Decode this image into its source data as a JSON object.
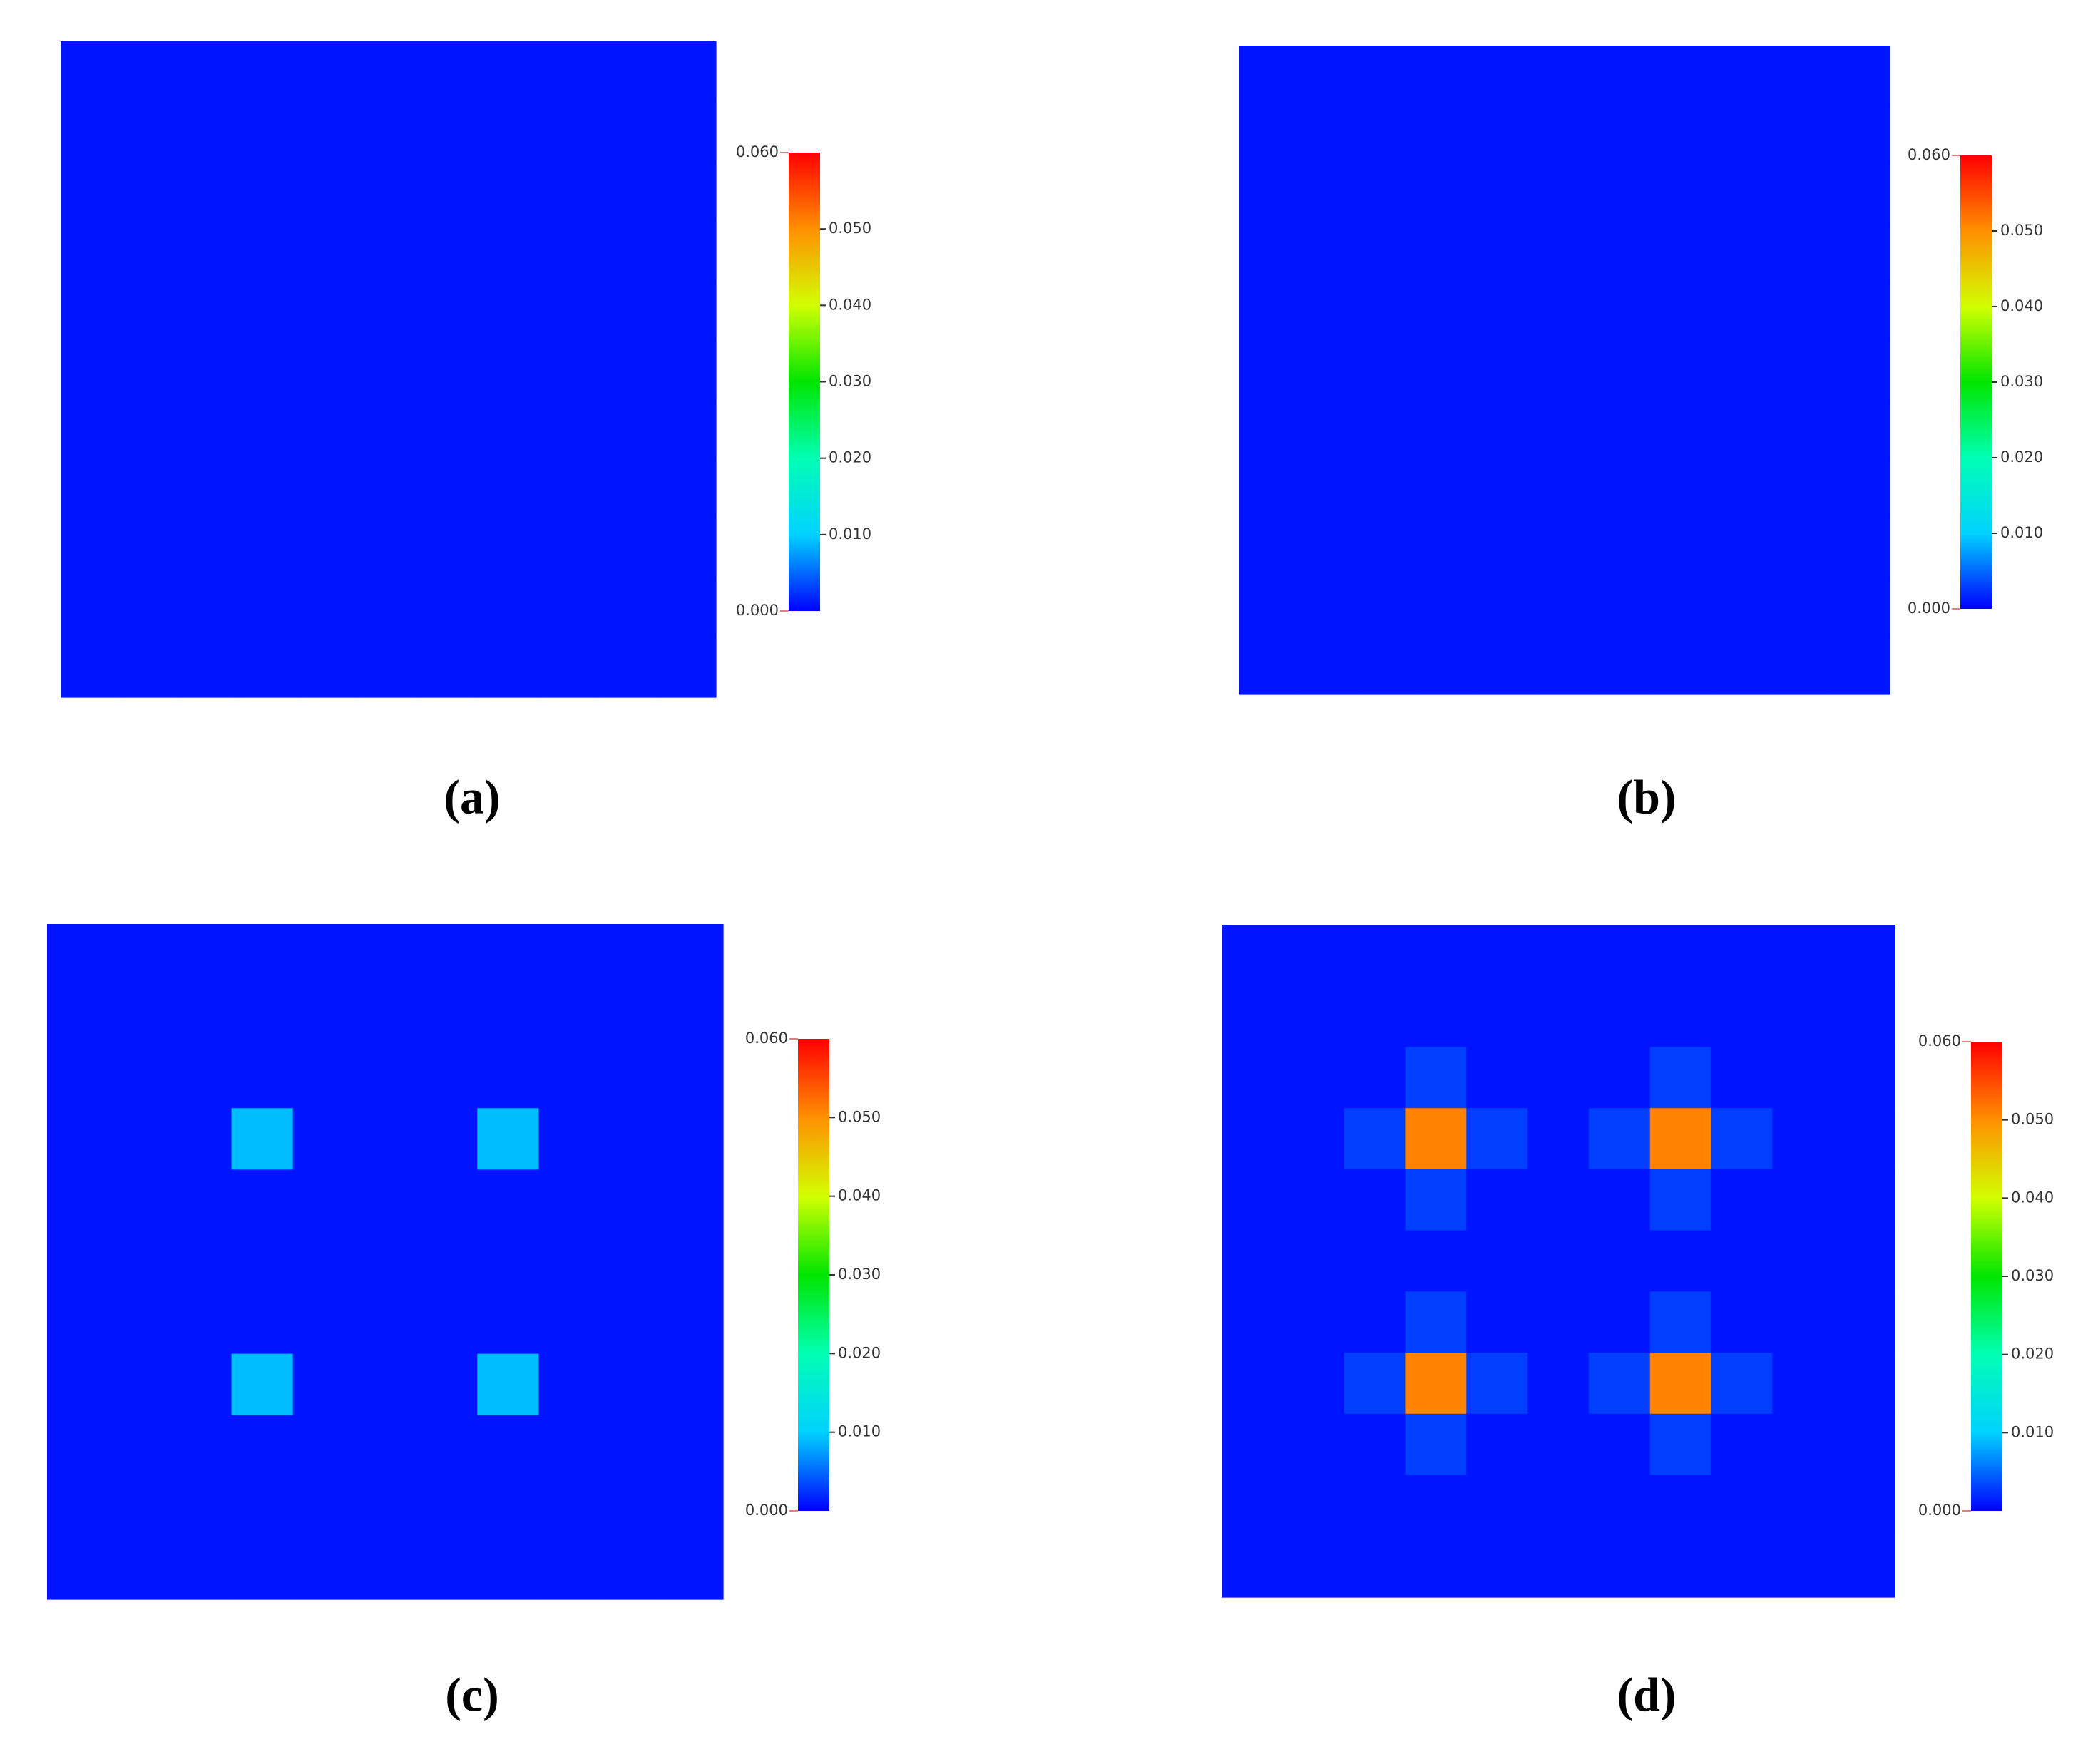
{
  "chart_data": [
    {
      "type": "heatmap",
      "label": "(a)",
      "zlim": [
        0,
        0.06
      ],
      "zticks": [
        {
          "value": 0,
          "label": "0.000"
        },
        {
          "value": 0.01,
          "label": "0.010"
        },
        {
          "value": 0.02,
          "label": "0.020"
        },
        {
          "value": 0.03,
          "label": "0.030"
        },
        {
          "value": 0.04,
          "label": "0.040"
        },
        {
          "value": 0.05,
          "label": "0.050"
        },
        {
          "value": 0.06,
          "label": "0.060"
        }
      ],
      "colormap": [
        "#0000ff",
        "#00d2ff",
        "#00ffb4",
        "#00e600",
        "#d2ff00",
        "#ff9000",
        "#ff0000"
      ],
      "z": [
        [
          0.001,
          0.001,
          0.001,
          0.001,
          0.001,
          0.001,
          0.001,
          0.001,
          0.001,
          0.001,
          0.001
        ],
        [
          0.001,
          0.001,
          0.001,
          0.001,
          0.001,
          0.001,
          0.001,
          0.001,
          0.001,
          0.001,
          0.001
        ],
        [
          0.001,
          0.001,
          0.001,
          0.001,
          0.001,
          0.001,
          0.001,
          0.001,
          0.001,
          0.001,
          0.001
        ],
        [
          0.001,
          0.001,
          0.001,
          0.001,
          0.001,
          0.001,
          0.001,
          0.001,
          0.001,
          0.001,
          0.001
        ],
        [
          0.001,
          0.001,
          0.001,
          0.001,
          0.001,
          0.001,
          0.001,
          0.001,
          0.001,
          0.001,
          0.001
        ],
        [
          0.001,
          0.001,
          0.001,
          0.001,
          0.001,
          0.001,
          0.001,
          0.001,
          0.001,
          0.001,
          0.001
        ],
        [
          0.001,
          0.001,
          0.001,
          0.001,
          0.001,
          0.001,
          0.001,
          0.001,
          0.001,
          0.001,
          0.001
        ],
        [
          0.001,
          0.001,
          0.001,
          0.001,
          0.001,
          0.001,
          0.001,
          0.001,
          0.001,
          0.001,
          0.001
        ],
        [
          0.001,
          0.001,
          0.001,
          0.001,
          0.001,
          0.001,
          0.001,
          0.001,
          0.001,
          0.001,
          0.001
        ],
        [
          0.001,
          0.001,
          0.001,
          0.001,
          0.001,
          0.001,
          0.001,
          0.001,
          0.001,
          0.001,
          0.001
        ],
        [
          0.001,
          0.001,
          0.001,
          0.001,
          0.001,
          0.001,
          0.001,
          0.001,
          0.001,
          0.001,
          0.001
        ]
      ]
    },
    {
      "type": "heatmap",
      "label": "(b)",
      "zlim": [
        0,
        0.06
      ],
      "zticks": [
        {
          "value": 0,
          "label": "0.000"
        },
        {
          "value": 0.01,
          "label": "0.010"
        },
        {
          "value": 0.02,
          "label": "0.020"
        },
        {
          "value": 0.03,
          "label": "0.030"
        },
        {
          "value": 0.04,
          "label": "0.040"
        },
        {
          "value": 0.05,
          "label": "0.050"
        },
        {
          "value": 0.06,
          "label": "0.060"
        }
      ],
      "colormap": [
        "#0000ff",
        "#00d2ff",
        "#00ffb4",
        "#00e600",
        "#d2ff00",
        "#ff9000",
        "#ff0000"
      ],
      "z": [
        [
          0.001,
          0.001,
          0.001,
          0.001,
          0.001,
          0.001,
          0.001,
          0.001,
          0.001,
          0.001,
          0.001
        ],
        [
          0.001,
          0.001,
          0.001,
          0.001,
          0.001,
          0.001,
          0.001,
          0.001,
          0.001,
          0.001,
          0.001
        ],
        [
          0.001,
          0.001,
          0.001,
          0.001,
          0.001,
          0.001,
          0.001,
          0.001,
          0.001,
          0.001,
          0.001
        ],
        [
          0.001,
          0.001,
          0.001,
          0.001,
          0.001,
          0.001,
          0.001,
          0.001,
          0.001,
          0.001,
          0.001
        ],
        [
          0.001,
          0.001,
          0.001,
          0.001,
          0.001,
          0.001,
          0.001,
          0.001,
          0.001,
          0.001,
          0.001
        ],
        [
          0.001,
          0.001,
          0.001,
          0.001,
          0.001,
          0.001,
          0.001,
          0.001,
          0.001,
          0.001,
          0.001
        ],
        [
          0.001,
          0.001,
          0.001,
          0.001,
          0.001,
          0.001,
          0.001,
          0.001,
          0.001,
          0.001,
          0.001
        ],
        [
          0.001,
          0.001,
          0.001,
          0.001,
          0.001,
          0.001,
          0.001,
          0.001,
          0.001,
          0.001,
          0.001
        ],
        [
          0.001,
          0.001,
          0.001,
          0.001,
          0.001,
          0.001,
          0.001,
          0.001,
          0.001,
          0.001,
          0.001
        ],
        [
          0.001,
          0.001,
          0.001,
          0.001,
          0.001,
          0.001,
          0.001,
          0.001,
          0.001,
          0.001,
          0.001
        ],
        [
          0.001,
          0.001,
          0.001,
          0.001,
          0.001,
          0.001,
          0.001,
          0.001,
          0.001,
          0.001,
          0.001
        ]
      ]
    },
    {
      "type": "heatmap",
      "label": "(c)",
      "zlim": [
        0,
        0.06
      ],
      "zticks": [
        {
          "value": 0,
          "label": "0.000"
        },
        {
          "value": 0.01,
          "label": "0.010"
        },
        {
          "value": 0.02,
          "label": "0.020"
        },
        {
          "value": 0.03,
          "label": "0.030"
        },
        {
          "value": 0.04,
          "label": "0.040"
        },
        {
          "value": 0.05,
          "label": "0.050"
        },
        {
          "value": 0.06,
          "label": "0.060"
        }
      ],
      "colormap": [
        "#0000ff",
        "#00d2ff",
        "#00ffb4",
        "#00e600",
        "#d2ff00",
        "#ff9000",
        "#ff0000"
      ],
      "z": [
        [
          0.001,
          0.001,
          0.001,
          0.001,
          0.001,
          0.001,
          0.001,
          0.001,
          0.001,
          0.001,
          0.001
        ],
        [
          0.001,
          0.001,
          0.001,
          0.001,
          0.001,
          0.001,
          0.001,
          0.001,
          0.001,
          0.001,
          0.001
        ],
        [
          0.001,
          0.001,
          0.001,
          0.001,
          0.001,
          0.001,
          0.001,
          0.001,
          0.001,
          0.001,
          0.001
        ],
        [
          0.001,
          0.001,
          0.001,
          0.009,
          0.001,
          0.001,
          0.001,
          0.009,
          0.001,
          0.001,
          0.001
        ],
        [
          0.001,
          0.001,
          0.001,
          0.001,
          0.001,
          0.001,
          0.001,
          0.001,
          0.001,
          0.001,
          0.001
        ],
        [
          0.001,
          0.001,
          0.001,
          0.001,
          0.001,
          0.001,
          0.001,
          0.001,
          0.001,
          0.001,
          0.001
        ],
        [
          0.001,
          0.001,
          0.001,
          0.001,
          0.001,
          0.001,
          0.001,
          0.001,
          0.001,
          0.001,
          0.001
        ],
        [
          0.001,
          0.001,
          0.001,
          0.009,
          0.001,
          0.001,
          0.001,
          0.009,
          0.001,
          0.001,
          0.001
        ],
        [
          0.001,
          0.001,
          0.001,
          0.001,
          0.001,
          0.001,
          0.001,
          0.001,
          0.001,
          0.001,
          0.001
        ],
        [
          0.001,
          0.001,
          0.001,
          0.001,
          0.001,
          0.001,
          0.001,
          0.001,
          0.001,
          0.001,
          0.001
        ],
        [
          0.001,
          0.001,
          0.001,
          0.001,
          0.001,
          0.001,
          0.001,
          0.001,
          0.001,
          0.001,
          0.001
        ]
      ]
    },
    {
      "type": "heatmap",
      "label": "(d)",
      "zlim": [
        0,
        0.06
      ],
      "zticks": [
        {
          "value": 0,
          "label": "0.000"
        },
        {
          "value": 0.01,
          "label": "0.010"
        },
        {
          "value": 0.02,
          "label": "0.020"
        },
        {
          "value": 0.03,
          "label": "0.030"
        },
        {
          "value": 0.04,
          "label": "0.040"
        },
        {
          "value": 0.05,
          "label": "0.050"
        },
        {
          "value": 0.06,
          "label": "0.060"
        }
      ],
      "colormap": [
        "#0000ff",
        "#00d2ff",
        "#00ffb4",
        "#00e600",
        "#d2ff00",
        "#ff9000",
        "#ff0000"
      ],
      "z": [
        [
          0.001,
          0.001,
          0.001,
          0.001,
          0.001,
          0.001,
          0.001,
          0.001,
          0.001,
          0.001,
          0.001
        ],
        [
          0.001,
          0.001,
          0.001,
          0.001,
          0.001,
          0.001,
          0.001,
          0.001,
          0.001,
          0.001,
          0.001
        ],
        [
          0.001,
          0.001,
          0.001,
          0.003,
          0.001,
          0.001,
          0.001,
          0.003,
          0.001,
          0.001,
          0.001
        ],
        [
          0.001,
          0.001,
          0.003,
          0.051,
          0.003,
          0.001,
          0.003,
          0.051,
          0.003,
          0.001,
          0.001
        ],
        [
          0.001,
          0.001,
          0.001,
          0.003,
          0.001,
          0.001,
          0.001,
          0.003,
          0.001,
          0.001,
          0.001
        ],
        [
          0.001,
          0.001,
          0.001,
          0.001,
          0.001,
          0.001,
          0.001,
          0.001,
          0.001,
          0.001,
          0.001
        ],
        [
          0.001,
          0.001,
          0.001,
          0.003,
          0.001,
          0.001,
          0.001,
          0.003,
          0.001,
          0.001,
          0.001
        ],
        [
          0.001,
          0.001,
          0.003,
          0.051,
          0.003,
          0.001,
          0.003,
          0.051,
          0.003,
          0.001,
          0.001
        ],
        [
          0.001,
          0.001,
          0.001,
          0.003,
          0.001,
          0.001,
          0.001,
          0.003,
          0.001,
          0.001,
          0.001
        ],
        [
          0.001,
          0.001,
          0.001,
          0.001,
          0.001,
          0.001,
          0.001,
          0.001,
          0.001,
          0.001,
          0.001
        ],
        [
          0.001,
          0.001,
          0.001,
          0.001,
          0.001,
          0.001,
          0.001,
          0.001,
          0.001,
          0.001,
          0.001
        ]
      ]
    }
  ]
}
